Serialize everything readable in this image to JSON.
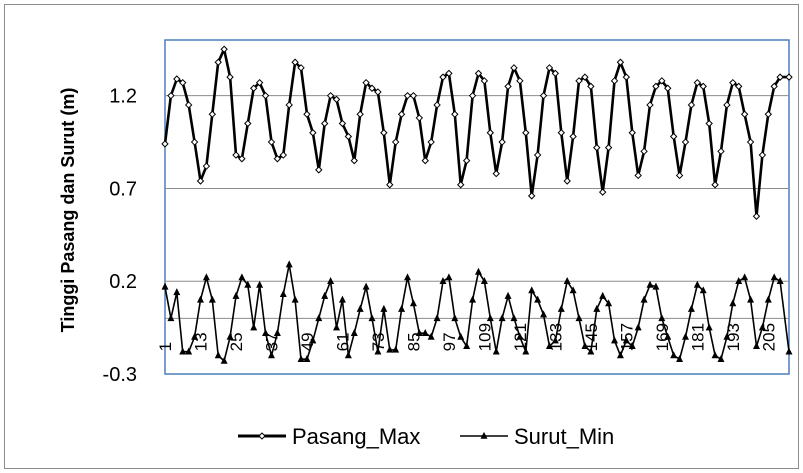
{
  "chart_data": {
    "type": "line",
    "ylabel": "Tinggi Pasang dan Surut (m)",
    "xlabel": "",
    "ylim": [
      -0.3,
      1.5
    ],
    "xlim": [
      1,
      212
    ],
    "yticks": [
      -0.3,
      0.2,
      0.7,
      1.2
    ],
    "ytick_labels": [
      "-0.3",
      "0.2",
      "0.7",
      "1.2"
    ],
    "xticks": [
      1,
      13,
      25,
      37,
      49,
      61,
      73,
      85,
      97,
      109,
      121,
      133,
      145,
      157,
      169,
      181,
      193,
      205
    ],
    "xtick_labels": [
      "1",
      "13",
      "25",
      "37",
      "49",
      "61",
      "73",
      "85",
      "97",
      "109",
      "121",
      "133",
      "145",
      "157",
      "169",
      "181",
      "193",
      "205"
    ],
    "gridlines": "horizontal",
    "legend_position": "bottom",
    "series": [
      {
        "name": "Pasang_Max",
        "marker": "diamond",
        "color": "#000000",
        "x": [
          1,
          3,
          5,
          7,
          9,
          11,
          13,
          15,
          17,
          19,
          21,
          23,
          25,
          27,
          29,
          31,
          33,
          35,
          37,
          39,
          41,
          43,
          45,
          47,
          49,
          51,
          53,
          55,
          57,
          59,
          61,
          63,
          65,
          67,
          69,
          71,
          73,
          75,
          77,
          79,
          81,
          83,
          85,
          87,
          89,
          91,
          93,
          95,
          97,
          99,
          101,
          103,
          105,
          107,
          109,
          111,
          113,
          115,
          117,
          119,
          121,
          123,
          125,
          127,
          129,
          131,
          133,
          135,
          137,
          139,
          141,
          143,
          145,
          147,
          149,
          151,
          153,
          155,
          157,
          159,
          161,
          163,
          165,
          167,
          169,
          171,
          173,
          175,
          177,
          179,
          181,
          183,
          185,
          187,
          189,
          191,
          193,
          195,
          197,
          199,
          201,
          203,
          205,
          207,
          209,
          212
        ],
        "values": [
          0.94,
          1.2,
          1.29,
          1.27,
          1.15,
          0.95,
          0.74,
          0.82,
          1.1,
          1.38,
          1.45,
          1.3,
          0.88,
          0.86,
          1.05,
          1.24,
          1.27,
          1.2,
          0.95,
          0.86,
          0.88,
          1.15,
          1.38,
          1.35,
          1.1,
          1.0,
          0.8,
          1.05,
          1.2,
          1.18,
          1.05,
          0.98,
          0.85,
          1.1,
          1.27,
          1.24,
          1.22,
          1.0,
          0.72,
          0.95,
          1.1,
          1.2,
          1.2,
          1.08,
          0.85,
          0.95,
          1.15,
          1.3,
          1.32,
          1.1,
          0.72,
          0.85,
          1.2,
          1.32,
          1.28,
          1.0,
          0.78,
          0.95,
          1.25,
          1.35,
          1.28,
          1.0,
          0.66,
          0.88,
          1.2,
          1.35,
          1.32,
          1.0,
          0.74,
          0.98,
          1.28,
          1.3,
          1.25,
          0.92,
          0.68,
          0.92,
          1.28,
          1.38,
          1.3,
          1.0,
          0.77,
          0.9,
          1.15,
          1.25,
          1.28,
          1.24,
          0.98,
          0.77,
          0.95,
          1.15,
          1.27,
          1.25,
          1.05,
          0.72,
          0.9,
          1.15,
          1.27,
          1.25,
          1.1,
          0.95,
          0.55,
          0.88,
          1.1,
          1.25,
          1.3,
          1.3
        ]
      },
      {
        "name": "Surut_Min",
        "marker": "triangle",
        "color": "#000000",
        "x": [
          1,
          3,
          5,
          7,
          9,
          11,
          13,
          15,
          17,
          19,
          21,
          23,
          25,
          27,
          29,
          31,
          33,
          35,
          37,
          39,
          41,
          43,
          45,
          47,
          49,
          51,
          53,
          55,
          57,
          59,
          61,
          63,
          65,
          67,
          69,
          71,
          73,
          75,
          77,
          79,
          81,
          83,
          85,
          87,
          89,
          91,
          93,
          95,
          97,
          99,
          101,
          103,
          105,
          107,
          109,
          111,
          113,
          115,
          117,
          119,
          121,
          123,
          125,
          127,
          129,
          131,
          133,
          135,
          137,
          139,
          141,
          143,
          145,
          147,
          149,
          151,
          153,
          155,
          157,
          159,
          161,
          163,
          165,
          167,
          169,
          171,
          173,
          175,
          177,
          179,
          181,
          183,
          185,
          187,
          189,
          191,
          193,
          195,
          197,
          199,
          201,
          203,
          205,
          207,
          209,
          212
        ],
        "values": [
          0.17,
          0.0,
          0.14,
          -0.18,
          -0.18,
          -0.1,
          0.1,
          0.22,
          0.1,
          -0.2,
          -0.23,
          -0.1,
          0.12,
          0.22,
          0.18,
          -0.05,
          0.18,
          -0.08,
          -0.2,
          -0.08,
          0.13,
          0.29,
          0.1,
          -0.22,
          -0.22,
          -0.12,
          0.0,
          0.12,
          0.2,
          -0.05,
          0.1,
          -0.2,
          -0.08,
          0.05,
          0.17,
          0.0,
          -0.18,
          0.05,
          -0.17,
          -0.17,
          0.05,
          0.22,
          0.08,
          -0.08,
          -0.08,
          -0.1,
          0.0,
          0.2,
          0.22,
          0.0,
          -0.1,
          -0.15,
          0.1,
          0.25,
          0.2,
          0.0,
          -0.18,
          0.0,
          0.12,
          0.0,
          -0.1,
          -0.18,
          0.15,
          0.1,
          0.02,
          -0.15,
          -0.12,
          0.05,
          0.2,
          0.15,
          0.0,
          -0.15,
          -0.18,
          0.05,
          0.12,
          0.08,
          -0.12,
          -0.2,
          -0.12,
          -0.15,
          -0.05,
          0.1,
          0.18,
          0.17,
          0.0,
          -0.1,
          -0.2,
          -0.22,
          -0.1,
          0.05,
          0.18,
          0.15,
          -0.05,
          -0.2,
          -0.22,
          -0.1,
          0.08,
          0.2,
          0.22,
          0.1,
          -0.15,
          -0.05,
          0.1,
          0.22,
          0.2,
          -0.18
        ]
      }
    ]
  }
}
